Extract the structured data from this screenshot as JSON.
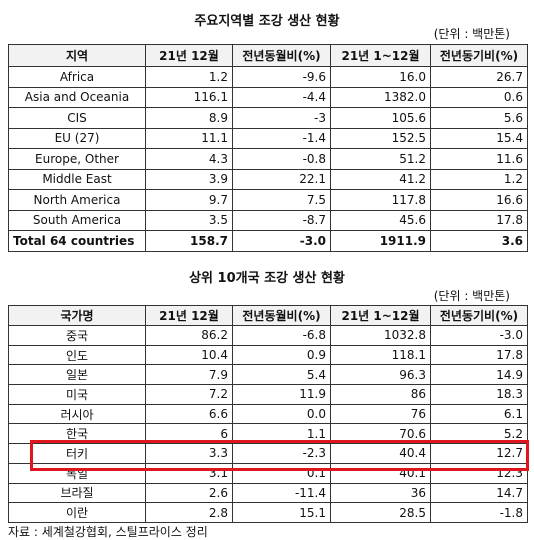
{
  "region_table": {
    "title": "주요지역별 조강 생산 현황",
    "unit": "(단위 : 백만톤)",
    "header": [
      "지역",
      "21년 12월",
      "전년동월비(%)",
      "21년 1~12월",
      "전년동기비(%)"
    ],
    "rows": [
      [
        "Africa",
        "1.2",
        "-9.6",
        "16.0",
        "26.7"
      ],
      [
        "Asia and Oceania",
        "116.1",
        "-4.4",
        "1382.0",
        "0.6"
      ],
      [
        "CIS",
        "8.9",
        "-3",
        "105.6",
        "5.6"
      ],
      [
        "EU (27)",
        "11.1",
        "-1.4",
        "152.5",
        "15.4"
      ],
      [
        "Europe, Other",
        "4.3",
        "-0.8",
        "51.2",
        "11.6"
      ],
      [
        "Middle East",
        "3.9",
        "22.1",
        "41.2",
        "1.2"
      ],
      [
        "North America",
        "9.7",
        "7.5",
        "117.8",
        "16.6"
      ],
      [
        "South America",
        "3.5",
        "-8.7",
        "45.6",
        "17.8"
      ]
    ],
    "total": [
      "Total 64 countries",
      "158.7",
      "-3.0",
      "1911.9",
      "3.6"
    ]
  },
  "country_table": {
    "title": "상위 10개국 조강 생산 현황",
    "unit": "(단위 : 백만톤)",
    "header": [
      "국가명",
      "21년 12월",
      "전년동월비(%)",
      "21년 1~12월",
      "전년동기비(%)"
    ],
    "rows": [
      [
        "중국",
        "86.2",
        "-6.8",
        "1032.8",
        "-3.0"
      ],
      [
        "인도",
        "10.4",
        "0.9",
        "118.1",
        "17.8"
      ],
      [
        "일본",
        "7.9",
        "5.4",
        "96.3",
        "14.9"
      ],
      [
        "미국",
        "7.2",
        "11.9",
        "86",
        "18.3"
      ],
      [
        "러시아",
        "6.6",
        "0.0",
        "76",
        "6.1"
      ],
      [
        "한국",
        "6",
        "1.1",
        "70.6",
        "5.2"
      ],
      [
        "터키",
        "3.3",
        "-2.3",
        "40.4",
        "12.7"
      ],
      [
        "독일",
        "3.1",
        "0.1",
        "40.1",
        "12.3"
      ],
      [
        "브라질",
        "2.6",
        "-11.4",
        "36",
        "14.7"
      ],
      [
        "이란",
        "2.8",
        "15.1",
        "28.5",
        "-1.8"
      ]
    ]
  },
  "source": "자료 : 세계철강협회, 스틸프라이스 정리"
}
